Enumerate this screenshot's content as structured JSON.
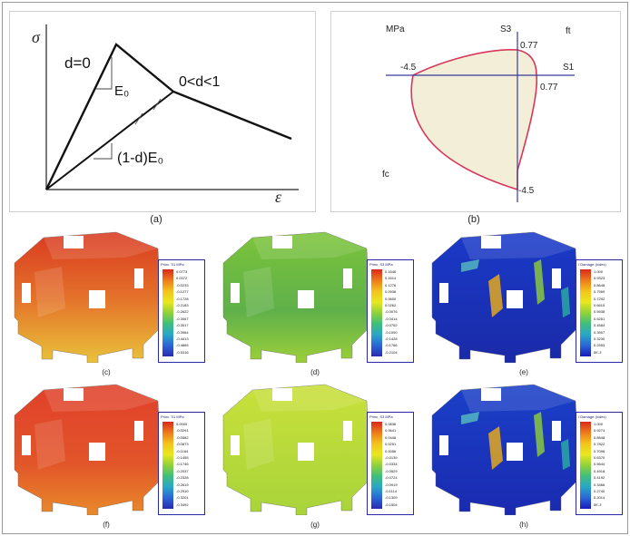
{
  "panel_a": {
    "caption": "(a)",
    "sigma": "σ",
    "epsilon": "ε",
    "d0": "d=0",
    "e0": "E₀",
    "d_range": "0<d<1",
    "degraded": "(1-d)E₀"
  },
  "panel_b": {
    "caption": "(b)",
    "unit": "MPa",
    "s3": "S3",
    "s1": "S1",
    "ft": "ft",
    "fc": "fc",
    "val_077_top": "0.77",
    "val_077_right": "0.77",
    "val_neg45_left": "-4.5",
    "val_neg45_bottom": "-4.5",
    "colors": {
      "envelope": "#d8365a",
      "fill": "#f3eed8",
      "axes": "#3a3a9a"
    }
  },
  "results": [
    {
      "caption": "(c)",
      "legend_title": "Princ. S1 MPa",
      "legend_kind": "stress",
      "legend_values": [
        "0.0773",
        "0.0372",
        "-0.0233",
        "-0.1277",
        "-0.1728",
        "-0.2183",
        "-0.2622",
        "-0.3067",
        "-0.3517",
        "-0.3964",
        "-0.4413",
        "-0.4865",
        "-0.5316"
      ]
    },
    {
      "caption": "(d)",
      "legend_title": "Princ. S3 MPa",
      "legend_kind": "stress",
      "legend_values": [
        "0.1646",
        "0.1614",
        "0.1276",
        "0.0938",
        "0.0600",
        "0.0262",
        "-0.0076",
        "-0.0414",
        "-0.0752",
        "-0.1090",
        "-0.1428",
        "-0.1766",
        "-0.2104"
      ]
    },
    {
      "caption": "(e)",
      "legend_title": "I Damage (index)",
      "legend_kind": "damage",
      "legend_values": [
        "1.000",
        "0.9323",
        "0.8646",
        "0.7969",
        "0.7292",
        "0.6615",
        "0.5938",
        "0.5261",
        "0.4584",
        "0.3907",
        "0.3230",
        "0.2553",
        "0E-3"
      ]
    },
    {
      "caption": "(f)",
      "legend_title": "Princ. S1 MPa",
      "legend_kind": "stress",
      "legend_values": [
        "0.0000",
        "-0.0291",
        "-0.0582",
        "-0.0873",
        "-0.1164",
        "-0.1455",
        "-0.1746",
        "-0.2037",
        "-0.2328",
        "-0.2619",
        "-0.2910",
        "-0.3201",
        "-0.3492"
      ]
    },
    {
      "caption": "(g)",
      "legend_title": "Princ. S3 MPa",
      "legend_kind": "stress",
      "legend_values": [
        "0.0836",
        "0.0641",
        "0.0446",
        "0.0251",
        "0.0056",
        "-0.0139",
        "-0.0334",
        "-0.0529",
        "-0.0724",
        "-0.0919",
        "-0.1114",
        "-0.1309",
        "-0.1504"
      ]
    },
    {
      "caption": "(h)",
      "legend_title": "I Damage (index)",
      "legend_kind": "damage",
      "legend_values": [
        "1.000",
        "0.9274",
        "0.8548",
        "0.7822",
        "0.7096",
        "0.6370",
        "0.5644",
        "0.4918",
        "0.4192",
        "0.3466",
        "0.2740",
        "0.2014",
        "0E-3"
      ]
    }
  ]
}
